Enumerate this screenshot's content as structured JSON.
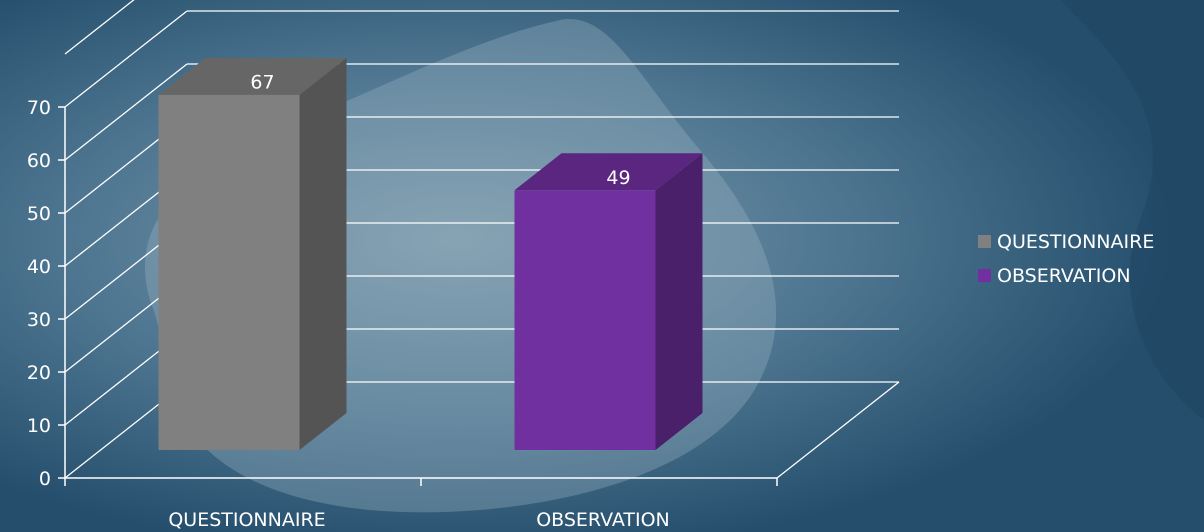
{
  "chart_data": {
    "type": "bar",
    "style": "3d",
    "categories": [
      "QUESTIONNAIRE",
      "OBSERVATION"
    ],
    "values": [
      67,
      49
    ],
    "data_labels": [
      "67",
      "49"
    ],
    "series": [
      {
        "name": "QUESTIONNAIRE",
        "values": [
          67,
          null
        ],
        "color": "#808080"
      },
      {
        "name": "OBSERVATION",
        "values": [
          null,
          49
        ],
        "color": "#7030a0"
      }
    ],
    "ylim": [
      0,
      70
    ],
    "y_ticks": [
      "0",
      "10",
      "20",
      "30",
      "40",
      "50",
      "60",
      "70"
    ],
    "grid": true,
    "legend_position": "right"
  },
  "theme": {
    "background": "#2d5a78",
    "background_light": "#8ea8b8",
    "gridline": "#ffffff",
    "text": "#ffffff"
  }
}
